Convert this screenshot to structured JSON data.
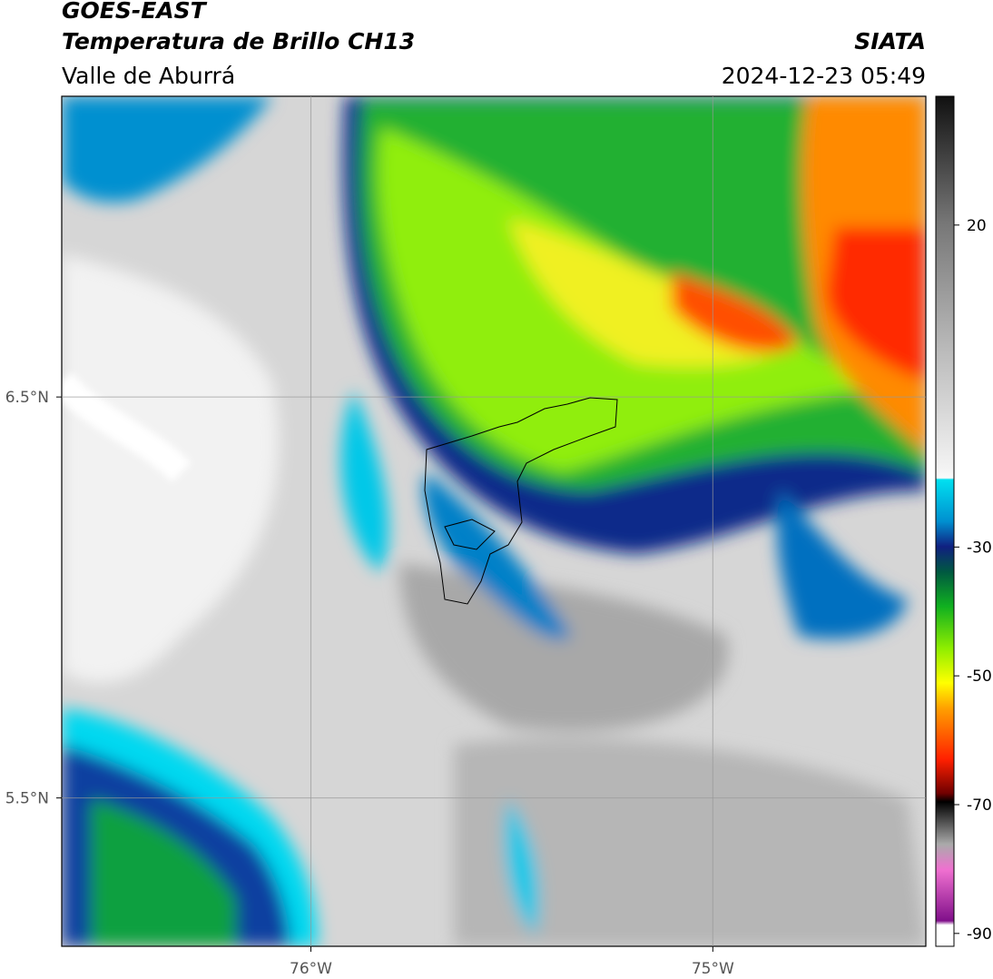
{
  "header": {
    "title": "GOES-EAST",
    "subtitle": "Temperatura de Brillo CH13",
    "region": "Valle de Aburrá",
    "source": "SIATA",
    "timestamp": "2024-12-23 05:49"
  },
  "map": {
    "xlim": [
      -76.62,
      -74.47
    ],
    "ylim": [
      5.13,
      7.25
    ],
    "xticks": [
      {
        "value": -76,
        "label": "76°W"
      },
      {
        "value": -75,
        "label": "75°W"
      }
    ],
    "yticks": [
      {
        "value": 6.5,
        "label": "6.5°N"
      },
      {
        "value": 5.5,
        "label": "5.5°N"
      }
    ]
  },
  "colorbar": {
    "clim": [
      -92,
      40
    ],
    "ticks": [
      20,
      -30,
      -50,
      -70,
      -90
    ]
  }
}
